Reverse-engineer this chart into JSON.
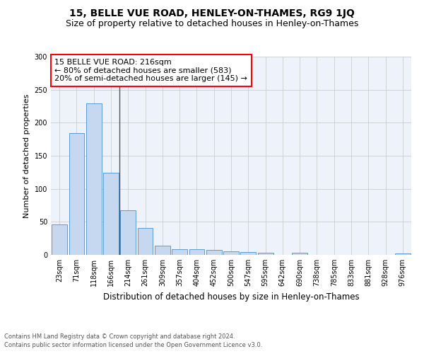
{
  "title": "15, BELLE VUE ROAD, HENLEY-ON-THAMES, RG9 1JQ",
  "subtitle": "Size of property relative to detached houses in Henley-on-Thames",
  "xlabel": "Distribution of detached houses by size in Henley-on-Thames",
  "ylabel": "Number of detached properties",
  "categories": [
    "23sqm",
    "71sqm",
    "118sqm",
    "166sqm",
    "214sqm",
    "261sqm",
    "309sqm",
    "357sqm",
    "404sqm",
    "452sqm",
    "500sqm",
    "547sqm",
    "595sqm",
    "642sqm",
    "690sqm",
    "738sqm",
    "785sqm",
    "833sqm",
    "881sqm",
    "928sqm",
    "976sqm"
  ],
  "values": [
    46,
    184,
    229,
    124,
    67,
    41,
    14,
    9,
    9,
    7,
    5,
    4,
    3,
    0,
    3,
    0,
    0,
    0,
    0,
    0,
    2
  ],
  "bar_color": "#c5d8f0",
  "bar_edge_color": "#5b9bd5",
  "vline_x_index": 4,
  "vline_color": "#555555",
  "annotation_box_text": "15 BELLE VUE ROAD: 216sqm\n← 80% of detached houses are smaller (583)\n20% of semi-detached houses are larger (145) →",
  "ylim": [
    0,
    300
  ],
  "yticks": [
    0,
    50,
    100,
    150,
    200,
    250,
    300
  ],
  "grid_color": "#cccccc",
  "bg_color": "#eef2fa",
  "footer_line1": "Contains HM Land Registry data © Crown copyright and database right 2024.",
  "footer_line2": "Contains public sector information licensed under the Open Government Licence v3.0.",
  "title_fontsize": 10,
  "subtitle_fontsize": 9,
  "annotation_fontsize": 8,
  "tick_fontsize": 7,
  "ylabel_fontsize": 8,
  "xlabel_fontsize": 8.5,
  "footer_fontsize": 6
}
